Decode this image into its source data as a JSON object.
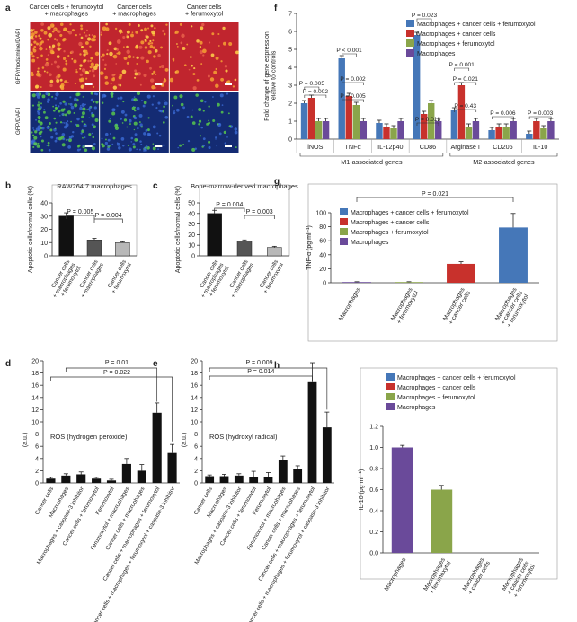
{
  "panel_a": {
    "letter": "a",
    "column_labels": [
      "Cancer cells + ferumoxytol\n+ macrophages",
      "Cancer cells\n+ macrophages",
      "Cancer cells\n+ ferumoxytol"
    ],
    "row_labels": [
      "GFP/rhodamine/DAPI",
      "GFP/DAPI"
    ],
    "colors": {
      "top_row": "#c0252e",
      "bottom_row": "#142b73",
      "dots_green": "#5bd14a",
      "dots_orange": "#f6a233",
      "dots_blue": "#3b6cd6"
    }
  },
  "chart_data": [
    {
      "id": "b",
      "type": "bar",
      "title": "RAW264.7 macrophages",
      "ylabel": "Apoptotic cells/normal cells (%)",
      "ylim": [
        0,
        40
      ],
      "yticks": [
        0,
        10,
        20,
        30,
        40
      ],
      "categories": [
        "Cancer cells\n+ macrophages\n+ ferumoxytol",
        "Cancer cells\n+ macrophages",
        "Cancer cells\n+ ferumoxytol"
      ],
      "values": [
        30,
        12,
        10
      ],
      "errors": [
        2.5,
        1.2,
        0.6
      ],
      "colors": [
        "#111111",
        "#555555",
        "#b8b8b8"
      ],
      "significance": [
        {
          "pair": [
            0,
            1
          ],
          "label": "P = 0.005"
        },
        {
          "pair": [
            1,
            2
          ],
          "label": "P = 0.004"
        }
      ]
    },
    {
      "id": "c",
      "type": "bar",
      "title": "Bone-marrow-derived macrophages",
      "ylabel": "Apoptotic cells/normal cells (%)",
      "ylim": [
        0,
        50
      ],
      "yticks": [
        0,
        10,
        20,
        30,
        40,
        50
      ],
      "categories": [
        "Cancer cells\n+ macrophages\n+ ferumoxytol",
        "Cancer cells\n+ macrophages",
        "Cancer cells\n+ ferumoxytol"
      ],
      "values": [
        40,
        14,
        8
      ],
      "errors": [
        3,
        1,
        1
      ],
      "colors": [
        "#111111",
        "#555555",
        "#b8b8b8"
      ],
      "significance": [
        {
          "pair": [
            0,
            1
          ],
          "label": "P = 0.004"
        },
        {
          "pair": [
            1,
            2
          ],
          "label": "P = 0.003"
        }
      ]
    },
    {
      "id": "d",
      "type": "bar",
      "annotation": "ROS (hydrogen peroxide)",
      "ylabel": "(a.u.)",
      "ylim": [
        0,
        20
      ],
      "yticks": [
        0,
        2,
        4,
        6,
        8,
        10,
        12,
        14,
        16,
        18,
        20
      ],
      "categories": [
        "Cancer cells",
        "Macrophages",
        "Macrophages + caspase-3 inhibitor",
        "Cancer cells + ferumoxytol",
        "Ferumoxytol",
        "Ferumoxytol + macrophages",
        "Cancer cells + macrophages",
        "Cancer cells + macrophages + ferumoxytol",
        "Cancer cells + macrophages + ferumoxytol + caspase-3 inhibitor"
      ],
      "values": [
        0.7,
        1.2,
        1.4,
        0.7,
        0.4,
        3.1,
        2.0,
        11.5,
        4.9
      ],
      "errors": [
        0.2,
        0.3,
        0.4,
        0.2,
        0.2,
        0.9,
        1.0,
        1.6,
        1.4
      ],
      "colors": [
        "#111111"
      ],
      "significance": [
        {
          "pair": [
            1,
            7
          ],
          "label": "P = 0.01"
        },
        {
          "pair": [
            0,
            8
          ],
          "label": "P = 0.022"
        }
      ]
    },
    {
      "id": "e",
      "type": "bar",
      "annotation": "ROS (hydroxyl radical)",
      "ylabel": "(a.u.)",
      "ylim": [
        0,
        20
      ],
      "yticks": [
        0,
        2,
        4,
        6,
        8,
        10,
        12,
        14,
        16,
        18,
        20
      ],
      "categories": [
        "Cancer cells",
        "Macrophages",
        "Macrophages + caspase-3 inhibitor",
        "Cancer cells + ferumoxytol",
        "Ferumoxytol",
        "Ferumoxytol + macrophages",
        "Cancer cells + macrophages",
        "Cancer cells + macrophages + ferumoxytol",
        "Cancer cells + macrophages + ferumoxytol + caspase-3 inhibitor"
      ],
      "values": [
        1.1,
        1.1,
        1.2,
        1.0,
        0.9,
        3.7,
        2.3,
        16.5,
        9.1
      ],
      "errors": [
        0.2,
        0.3,
        0.3,
        0.9,
        0.8,
        0.7,
        0.5,
        3.2,
        2.5
      ],
      "colors": [
        "#111111"
      ],
      "significance": [
        {
          "pair": [
            0,
            8
          ],
          "label": "P = 0.009"
        },
        {
          "pair": [
            0,
            7
          ],
          "label": "P = 0.014"
        }
      ]
    },
    {
      "id": "f",
      "type": "bar",
      "ylabel": "Fold change of gene expression\nrelative to controls",
      "ylim": [
        0,
        7
      ],
      "yticks": [
        0,
        1,
        2,
        3,
        4,
        5,
        6,
        7
      ],
      "categories": [
        "iNOS",
        "TNFα",
        "IL-12p40",
        "CD86",
        "Arginase I",
        "CD206",
        "IL-10"
      ],
      "groups": [
        {
          "label": "M1-associated genes",
          "span": [
            0,
            3
          ]
        },
        {
          "label": "M2-associated genes",
          "span": [
            4,
            6
          ]
        }
      ],
      "series": [
        {
          "name": "Macrophages + cancer cells + ferumoxytol",
          "color": "#4577b8",
          "values": [
            2.0,
            4.5,
            0.9,
            5.8,
            1.6,
            0.5,
            0.3
          ]
        },
        {
          "name": "Macrophages + cancer cells",
          "color": "#c8312c",
          "values": [
            2.3,
            2.4,
            0.7,
            1.4,
            3.0,
            0.7,
            1.0
          ]
        },
        {
          "name": "Macrophages + ferumoxytol",
          "color": "#8aa54a",
          "values": [
            1.0,
            1.9,
            0.6,
            2.0,
            0.7,
            0.7,
            0.6
          ]
        },
        {
          "name": "Macrophages",
          "color": "#6a4a9a",
          "values": [
            1.0,
            1.0,
            1.0,
            1.0,
            1.0,
            1.0,
            1.0
          ]
        }
      ],
      "significance": [
        {
          "gene": 0,
          "label": "P = 0.005"
        },
        {
          "gene": 0,
          "label": "P = 0.002"
        },
        {
          "gene": 1,
          "label": "P < 0.001"
        },
        {
          "gene": 1,
          "label": "P = 0.002"
        },
        {
          "gene": 1,
          "label": "P = 0.005"
        },
        {
          "gene": 3,
          "label": "P = 0.023"
        },
        {
          "gene": 3,
          "label": "P = 0.013"
        },
        {
          "gene": 4,
          "label": "P = 0.001"
        },
        {
          "gene": 4,
          "label": "P = 0.021"
        },
        {
          "gene": 4,
          "label": "P = 0.43"
        },
        {
          "gene": 5,
          "label": "P = 0.006"
        },
        {
          "gene": 6,
          "label": "P = 0.003"
        }
      ]
    },
    {
      "id": "g",
      "type": "bar",
      "ylabel": "TNF-α (pg ml⁻¹)",
      "ylim": [
        0,
        100
      ],
      "yticks": [
        0,
        20,
        40,
        60,
        80,
        100
      ],
      "categories": [
        "Macrophages",
        "Macrophages\n+ ferumoxytol",
        "Macrophages\n+ cancer cells",
        "Macrophages\n+ cancer cells\n+ ferumoxytol"
      ],
      "values": [
        1,
        1,
        27,
        79
      ],
      "errors": [
        0.5,
        0.5,
        3,
        20
      ],
      "colors": [
        "#6a4a9a",
        "#8aa54a",
        "#c8312c",
        "#4577b8"
      ],
      "legend": [
        "Macrophages + cancer cells + ferumoxytol",
        "Macrophages + cancer cells",
        "Macrophages + ferumoxytol",
        "Macrophages"
      ],
      "significance": [
        {
          "pair": [
            0,
            3
          ],
          "label": "P = 0.021"
        }
      ]
    },
    {
      "id": "h",
      "type": "bar",
      "ylabel": "IL-10 (pg ml⁻¹)",
      "ylim": [
        0,
        1.2
      ],
      "yticks": [
        0,
        0.2,
        0.4,
        0.6,
        0.8,
        1.0,
        1.2
      ],
      "categories": [
        "Macrophages",
        "Macrophages\n+ ferumoxytol",
        "Macrophages\n+ cancer cells",
        "Macrophages\n+ cancer cells\n+ ferumoxytol"
      ],
      "values": [
        1.0,
        0.6,
        0,
        0
      ],
      "errors": [
        0.02,
        0.04,
        0,
        0
      ],
      "colors": [
        "#6a4a9a",
        "#8aa54a",
        "#c8312c",
        "#4577b8"
      ],
      "legend": [
        "Macrophages + cancer cells + ferumoxytol",
        "Macrophages + cancer cells",
        "Macrophages + ferumoxytol",
        "Macrophages"
      ]
    }
  ]
}
